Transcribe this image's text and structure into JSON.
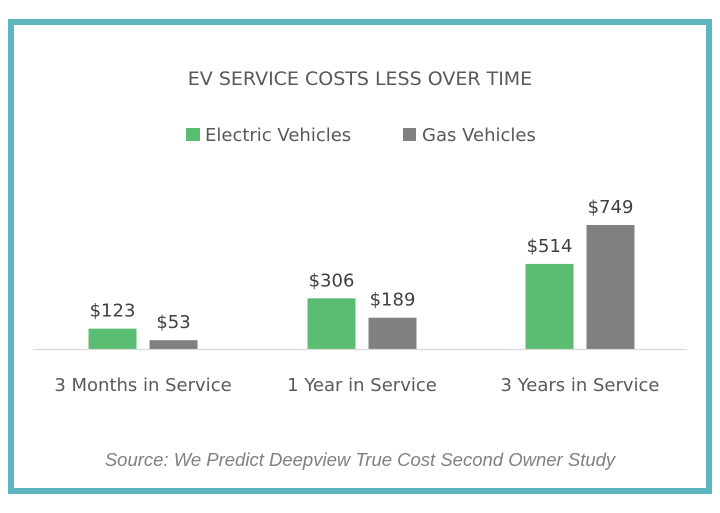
{
  "chart_data": {
    "type": "bar",
    "title": "EV SERVICE COSTS LESS OVER TIME",
    "categories": [
      "3 Months in Service",
      "1 Year in Service",
      "3 Years in Service"
    ],
    "series": [
      {
        "name": "Electric Vehicles",
        "color": "#5bbd72",
        "values": [
          123,
          306,
          514
        ],
        "labels": [
          "$123",
          "$306",
          "$514"
        ]
      },
      {
        "name": "Gas Vehicles",
        "color": "#808080",
        "values": [
          53,
          189,
          749
        ],
        "labels": [
          "$53",
          "$189",
          "$749"
        ]
      }
    ],
    "xlabel": "",
    "ylabel": "",
    "ylim": [
      0,
      749
    ],
    "grid": false,
    "legend_position": "top-center",
    "source": "Source: We Predict Deepview True Cost Second Owner Study"
  },
  "colors": {
    "border": "#5db6bd",
    "axis": "#d9d9d9"
  }
}
